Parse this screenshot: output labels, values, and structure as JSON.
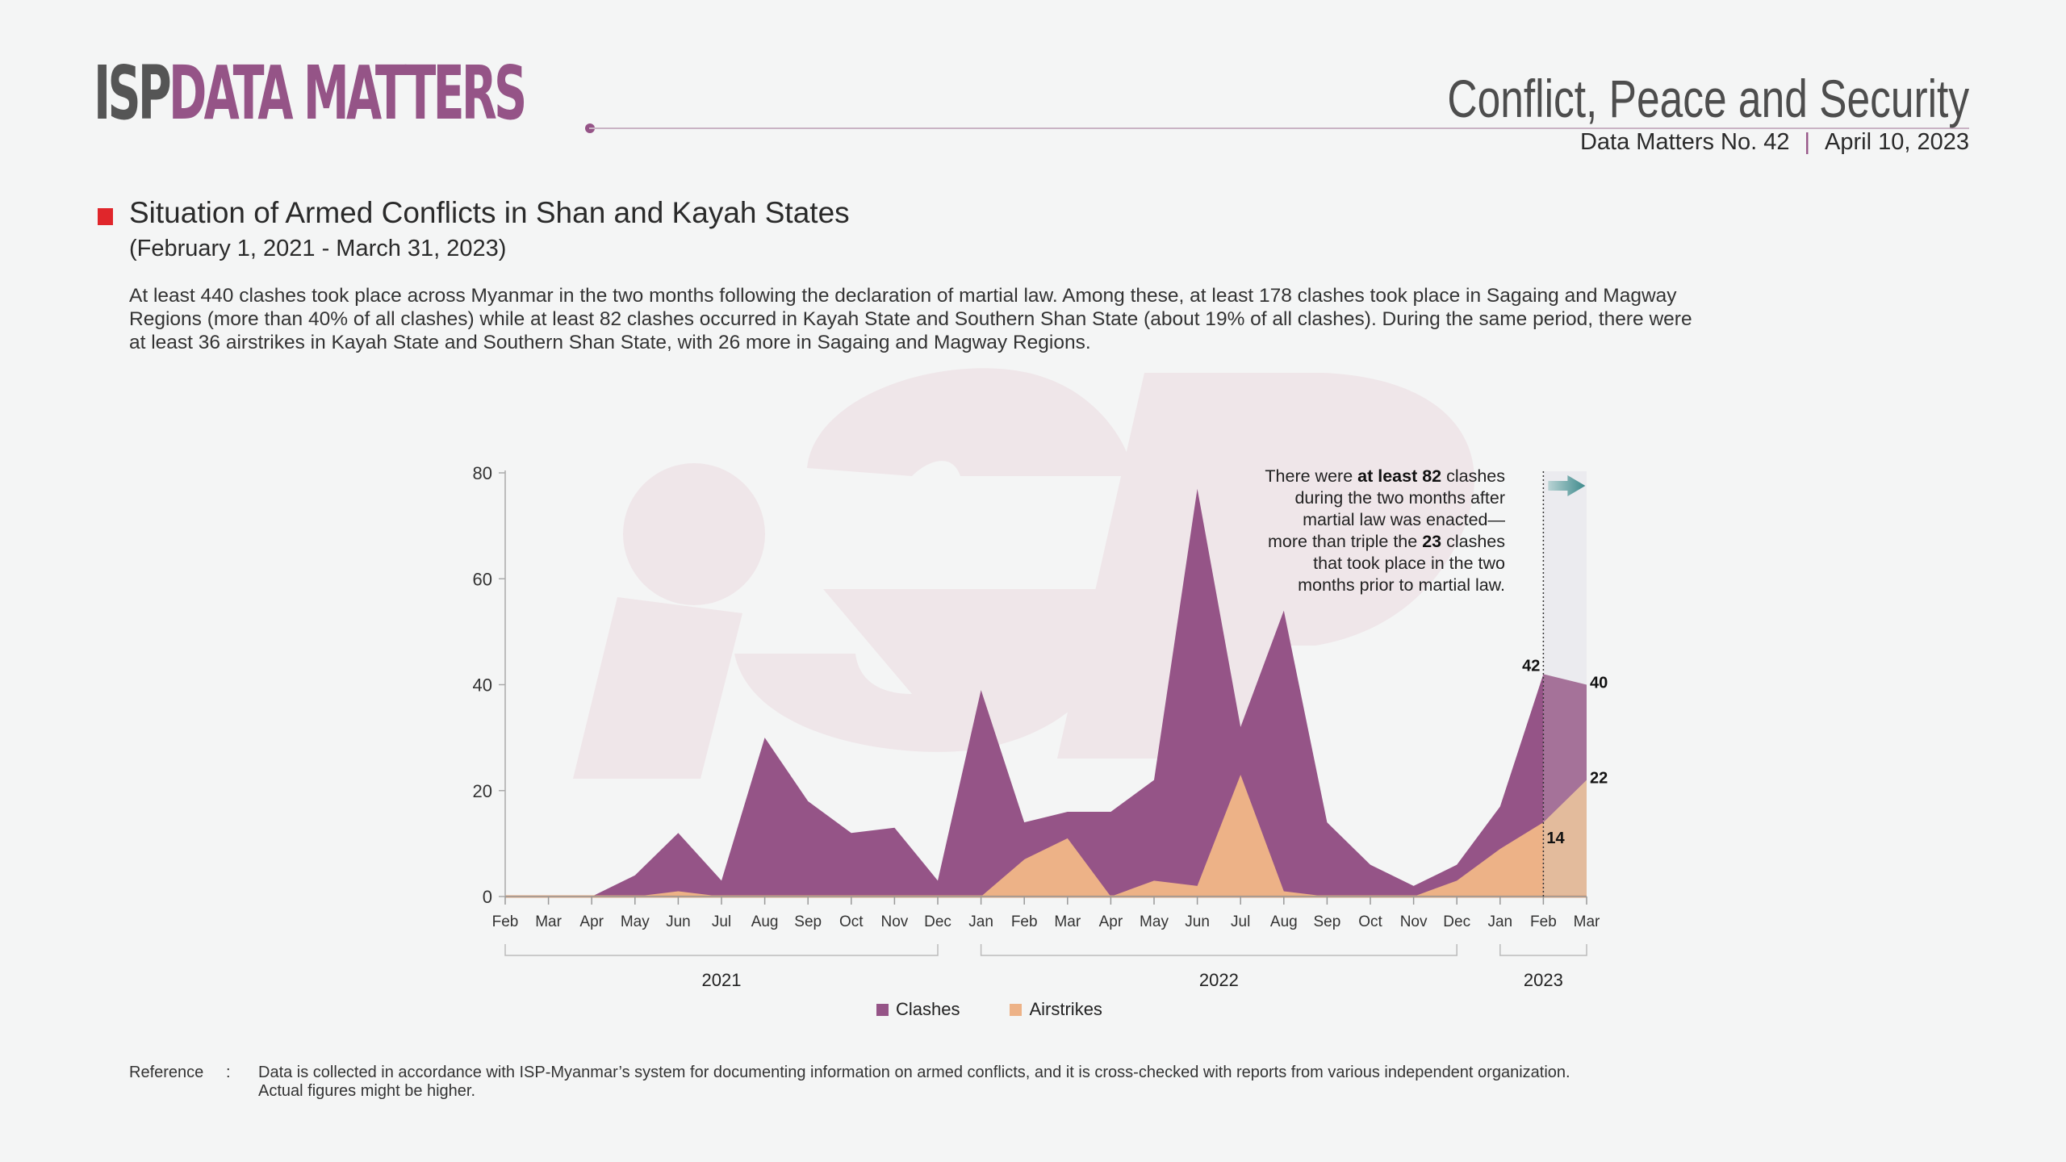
{
  "header": {
    "logo_prefix": "ISP",
    "logo_main": "DATA MATTERS",
    "series_title": "Conflict, Peace and Security",
    "issue": "Data Matters No. 42",
    "separator": "|",
    "date": "April 10, 2023"
  },
  "article": {
    "title": "Situation of Armed Conflicts in Shan and Kayah States",
    "subtitle": "(February 1, 2021 - March 31, 2023)",
    "description": "At least 440 clashes took place across Myanmar in the two months following the declaration of martial law. Among these, at least 178 clashes took place in Sagaing and Magway Regions (more than 40% of all clashes) while at least 82 clashes occurred in Kayah State and Southern Shan State (about 19% of all clashes). During the same period, there were at least 36 airstrikes in Kayah State and Southern Shan State, with 26 more in Sagaing and Magway Regions."
  },
  "annotation": {
    "part1": "There were ",
    "bold1": "at least 82",
    "part2": " clashes during the two months after martial law was enacted— more than triple the ",
    "bold2": "23",
    "part3": " clashes that took place in the two months prior to martial law."
  },
  "colors": {
    "clashes": "#955487",
    "airstrikes": "#edb287",
    "clashes_highlight": "#a57299",
    "airstrikes_highlight": "#e3bb9c",
    "accent_red": "#e0262b",
    "arrow": "#3e8a8c"
  },
  "chart_data": {
    "type": "area",
    "title": "",
    "xlabel": "",
    "ylabel": "",
    "ylim": [
      0,
      80
    ],
    "yticks": [
      0,
      20,
      40,
      60,
      80
    ],
    "grid": false,
    "legend_position": "bottom-center",
    "x": [
      "Feb",
      "Mar",
      "Apr",
      "May",
      "Jun",
      "Jul",
      "Aug",
      "Sep",
      "Oct",
      "Nov",
      "Dec",
      "Jan",
      "Feb",
      "Mar",
      "Apr",
      "May",
      "Jun",
      "Jul",
      "Aug",
      "Sep",
      "Oct",
      "Nov",
      "Dec",
      "Jan",
      "Feb",
      "Mar"
    ],
    "year_groups": [
      {
        "label": "2021",
        "start": 0,
        "end": 10
      },
      {
        "label": "2022",
        "start": 11,
        "end": 22
      },
      {
        "label": "2023",
        "start": 23,
        "end": 25
      }
    ],
    "series": [
      {
        "name": "Clashes",
        "values": [
          0,
          0,
          0,
          4,
          12,
          3,
          30,
          18,
          12,
          13,
          3,
          39,
          14,
          16,
          16,
          22,
          77,
          32,
          54,
          14,
          6,
          2,
          6,
          17,
          42,
          40
        ]
      },
      {
        "name": "Airstrikes",
        "values": [
          0,
          0,
          0,
          0,
          1,
          0,
          0,
          0,
          0,
          0,
          0,
          0,
          7,
          11,
          0,
          3,
          2,
          23,
          1,
          0,
          0,
          0,
          3,
          9,
          14,
          22
        ]
      }
    ],
    "highlight_region": {
      "start": 24,
      "end": 25
    },
    "data_labels": [
      {
        "series": "Clashes",
        "index": 24,
        "text": "42"
      },
      {
        "series": "Clashes",
        "index": 25,
        "text": "40"
      },
      {
        "series": "Airstrikes",
        "index": 24,
        "text": "14"
      },
      {
        "series": "Airstrikes",
        "index": 25,
        "text": "22"
      }
    ]
  },
  "legend": {
    "items": [
      {
        "label": "Clashes"
      },
      {
        "label": "Airstrikes"
      }
    ]
  },
  "reference": {
    "label": "Reference",
    "colon": ":",
    "text": "Data is collected in accordance with ISP-Myanmar’s system for documenting information on armed conflicts, and it is cross-checked with reports from various independent organization. Actual figures might be higher."
  }
}
